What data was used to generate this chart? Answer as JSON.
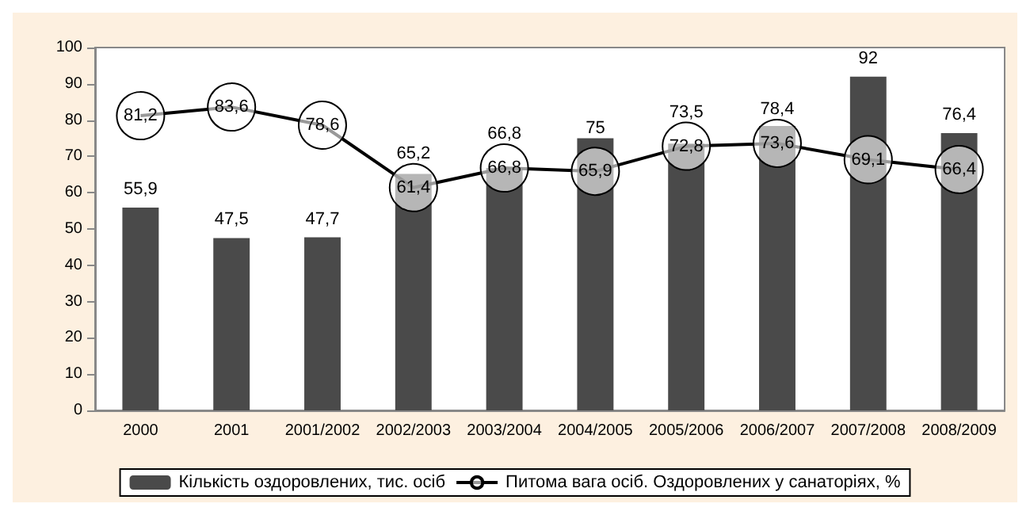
{
  "chart_data": {
    "type": "bar",
    "categories": [
      "2000",
      "2001",
      "2001/2002",
      "2002/2003",
      "2003/2004",
      "2004/2005",
      "2005/2006",
      "2006/2007",
      "2007/2008",
      "2008/2009"
    ],
    "series": [
      {
        "name": "Кількість оздоровлених, тис. осіб",
        "color": "#4a4a4a",
        "values": [
          55.9,
          47.5,
          47.7,
          65.2,
          66.8,
          75,
          73.5,
          78.4,
          92,
          76.4
        ],
        "value_labels": [
          "55,9",
          "47,5",
          "47,7",
          "65,2",
          "66,8",
          "75",
          "73,5",
          "78,4",
          "92",
          "76,4"
        ]
      },
      {
        "name": "Питома вага осіб. Оздоровлених у санаторіях, %",
        "type": "line",
        "color": "#000000",
        "marker": "circle",
        "values": [
          81.2,
          83.6,
          78.6,
          61.4,
          66.8,
          65.9,
          72.8,
          73.6,
          69.1,
          66.4
        ],
        "value_labels": [
          "81,2",
          "83,6",
          "78,6",
          "61,4",
          "66,8",
          "65,9",
          "72,8",
          "73,6",
          "69,1",
          "66,4"
        ]
      }
    ],
    "ylim": [
      0,
      100
    ],
    "yticks": [
      0,
      10,
      20,
      30,
      40,
      50,
      60,
      70,
      80,
      90,
      100
    ],
    "grid": false,
    "legend": "bottom"
  }
}
